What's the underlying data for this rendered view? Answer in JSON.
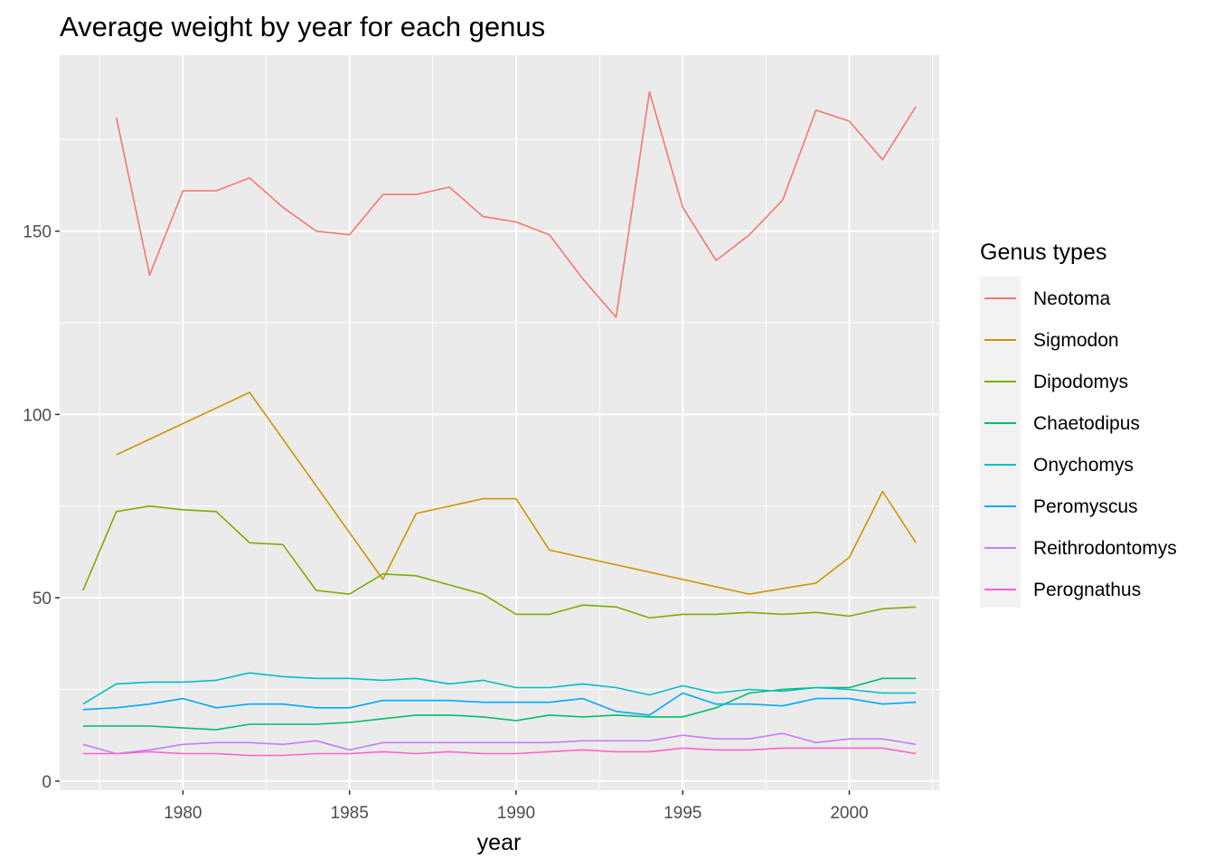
{
  "chart_data": {
    "type": "line",
    "title": "Average weight by year for each genus",
    "xlabel": "year",
    "ylabel": "",
    "xlim": [
      1976.3,
      2002.7
    ],
    "ylim": [
      -2.5,
      198
    ],
    "x_ticks": [
      1980,
      1985,
      1990,
      1995,
      2000
    ],
    "x_tick_labels": [
      "1980",
      "1985",
      "1990",
      "1995",
      "2000"
    ],
    "y_ticks": [
      0,
      50,
      100,
      150
    ],
    "y_tick_labels": [
      "0",
      "50",
      "100",
      "150"
    ],
    "grid": true,
    "legend": {
      "title": "Genus types",
      "position": "right"
    },
    "series": [
      {
        "name": "Neotoma",
        "color": "#F8766D",
        "x": [
          1978,
          1979,
          1980,
          1981,
          1982,
          1983,
          1984,
          1985,
          1986,
          1987,
          1988,
          1989,
          1990,
          1991,
          1992,
          1993,
          1994,
          1995,
          1996,
          1997,
          1998,
          1999,
          2000,
          2001,
          2002
        ],
        "y": [
          181,
          138,
          161,
          161,
          164.5,
          156.5,
          150,
          149,
          160,
          160,
          162,
          154,
          152.5,
          149,
          137,
          126.5,
          188,
          156.5,
          142,
          149,
          158.5,
          183,
          180,
          169.5,
          184
        ]
      },
      {
        "name": "Sigmodon",
        "color": "#CD9600",
        "x": [
          1978,
          1980,
          1982,
          1986,
          1987,
          1989,
          1990,
          1991,
          1997,
          1999,
          2000,
          2001,
          2002
        ],
        "y": [
          89,
          97.5,
          106,
          55,
          73,
          77,
          77,
          63,
          51,
          54,
          61,
          79,
          65
        ]
      },
      {
        "name": "Dipodomys",
        "color": "#7CAE00",
        "x": [
          1977,
          1978,
          1979,
          1980,
          1981,
          1982,
          1983,
          1984,
          1985,
          1986,
          1987,
          1988,
          1989,
          1990,
          1991,
          1992,
          1993,
          1994,
          1995,
          1996,
          1997,
          1998,
          1999,
          2000,
          2001,
          2002
        ],
        "y": [
          52,
          73.5,
          75,
          74,
          73.5,
          65,
          64.5,
          52,
          51,
          56.5,
          56,
          53.5,
          51,
          45.5,
          45.5,
          48,
          47.5,
          44.5,
          45.5,
          45.5,
          46,
          45.5,
          46,
          45,
          47,
          47.5
        ]
      },
      {
        "name": "Chaetodipus",
        "color": "#00BE67",
        "x": [
          1977,
          1978,
          1979,
          1980,
          1981,
          1982,
          1983,
          1984,
          1985,
          1986,
          1987,
          1988,
          1989,
          1990,
          1991,
          1992,
          1993,
          1994,
          1995,
          1996,
          1997,
          1998,
          1999,
          2000,
          2001,
          2002
        ],
        "y": [
          15,
          15,
          15,
          14.5,
          14,
          15.5,
          15.5,
          15.5,
          16,
          17,
          18,
          18,
          17.5,
          16.5,
          18,
          17.5,
          18,
          17.5,
          17.5,
          20,
          24,
          25,
          25.5,
          25.5,
          28,
          28
        ]
      },
      {
        "name": "Onychomys",
        "color": "#00BFC4",
        "x": [
          1977,
          1978,
          1979,
          1980,
          1981,
          1982,
          1983,
          1984,
          1985,
          1986,
          1987,
          1988,
          1989,
          1990,
          1991,
          1992,
          1993,
          1994,
          1995,
          1996,
          1997,
          1998,
          1999,
          2000,
          2001,
          2002
        ],
        "y": [
          21,
          26.5,
          27,
          27,
          27.5,
          29.5,
          28.5,
          28,
          28,
          27.5,
          28,
          26.5,
          27.5,
          25.5,
          25.5,
          26.5,
          25.5,
          23.5,
          26,
          24,
          25,
          24.5,
          25.5,
          25,
          24,
          24
        ]
      },
      {
        "name": "Peromyscus",
        "color": "#00A9FF",
        "x": [
          1977,
          1978,
          1979,
          1980,
          1981,
          1982,
          1983,
          1984,
          1985,
          1986,
          1987,
          1988,
          1989,
          1990,
          1991,
          1992,
          1993,
          1994,
          1995,
          1996,
          1997,
          1998,
          1999,
          2000,
          2001,
          2002
        ],
        "y": [
          19.5,
          20,
          21,
          22.5,
          20,
          21,
          21,
          20,
          20,
          22,
          22,
          22,
          21.5,
          21.5,
          21.5,
          22.5,
          19,
          18,
          24,
          21,
          21,
          20.5,
          22.5,
          22.5,
          21,
          21.5
        ]
      },
      {
        "name": "Reithrodontomys",
        "color": "#C77CFF",
        "x": [
          1977,
          1978,
          1979,
          1980,
          1981,
          1982,
          1983,
          1984,
          1985,
          1986,
          1987,
          1988,
          1989,
          1990,
          1991,
          1992,
          1993,
          1994,
          1995,
          1996,
          1997,
          1998,
          1999,
          2000,
          2001,
          2002
        ],
        "y": [
          10,
          7.5,
          8.5,
          10,
          10.5,
          10.5,
          10,
          11,
          8.5,
          10.5,
          10.5,
          10.5,
          10.5,
          10.5,
          10.5,
          11,
          11,
          11,
          12.5,
          11.5,
          11.5,
          13,
          10.5,
          11.5,
          11.5,
          10
        ]
      },
      {
        "name": "Perognathus",
        "color": "#FF61CC",
        "x": [
          1977,
          1978,
          1979,
          1980,
          1981,
          1982,
          1983,
          1984,
          1985,
          1986,
          1987,
          1988,
          1989,
          1990,
          1991,
          1992,
          1993,
          1994,
          1995,
          1996,
          1997,
          1998,
          1999,
          2000,
          2001,
          2002
        ],
        "y": [
          7.5,
          7.5,
          8,
          7.5,
          7.5,
          7,
          7,
          7.5,
          7.5,
          8,
          7.5,
          8,
          7.5,
          7.5,
          8,
          8.5,
          8,
          8,
          9,
          8.5,
          8.5,
          9,
          9,
          9,
          9,
          7.5
        ]
      }
    ]
  }
}
